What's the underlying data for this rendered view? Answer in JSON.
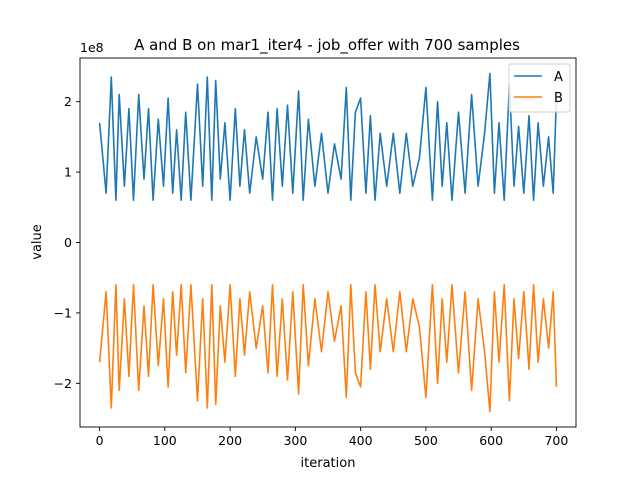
{
  "chart_data": {
    "type": "line",
    "title": "A and B on mar1_iter4 - job_offer with 700 samples",
    "xlabel": "iteration",
    "ylabel": "value",
    "y_offset_label": "1e8",
    "xlim": [
      -30,
      730
    ],
    "ylim": [
      -262000000.0,
      262000000.0
    ],
    "x_ticks": [
      0,
      100,
      200,
      300,
      400,
      500,
      600,
      700
    ],
    "y_ticks": [
      -200000000.0,
      -100000000.0,
      0,
      100000000.0,
      200000000.0
    ],
    "y_tick_labels": [
      "−2",
      "−1",
      "0",
      "1",
      "2"
    ],
    "legend_position": "top-right",
    "grid": false,
    "series": [
      {
        "name": "A",
        "color": "#1f77b4",
        "x": [
          0,
          10,
          18,
          25,
          30,
          38,
          45,
          52,
          60,
          68,
          75,
          82,
          90,
          98,
          105,
          112,
          118,
          125,
          132,
          140,
          150,
          158,
          165,
          172,
          178,
          185,
          192,
          200,
          208,
          215,
          222,
          230,
          240,
          250,
          258,
          265,
          272,
          280,
          288,
          296,
          305,
          312,
          320,
          330,
          340,
          350,
          360,
          370,
          378,
          385,
          392,
          400,
          408,
          415,
          422,
          430,
          440,
          450,
          460,
          470,
          480,
          490,
          500,
          510,
          518,
          525,
          532,
          540,
          550,
          560,
          570,
          580,
          590,
          598,
          605,
          612,
          620,
          628,
          635,
          642,
          650,
          658,
          665,
          672,
          680,
          688,
          695,
          700
        ],
        "y": [
          170000000.0,
          70000000.0,
          235000000.0,
          60000000.0,
          210000000.0,
          80000000.0,
          190000000.0,
          60000000.0,
          210000000.0,
          90000000.0,
          190000000.0,
          60000000.0,
          175000000.0,
          80000000.0,
          205000000.0,
          70000000.0,
          160000000.0,
          60000000.0,
          185000000.0,
          60000000.0,
          225000000.0,
          80000000.0,
          235000000.0,
          60000000.0,
          230000000.0,
          90000000.0,
          170000000.0,
          60000000.0,
          190000000.0,
          80000000.0,
          160000000.0,
          70000000.0,
          150000000.0,
          90000000.0,
          185000000.0,
          60000000.0,
          190000000.0,
          80000000.0,
          195000000.0,
          70000000.0,
          215000000.0,
          60000000.0,
          175000000.0,
          80000000.0,
          155000000.0,
          70000000.0,
          140000000.0,
          90000000.0,
          220000000.0,
          60000000.0,
          185000000.0,
          205000000.0,
          70000000.0,
          180000000.0,
          60000000.0,
          155000000.0,
          80000000.0,
          155000000.0,
          70000000.0,
          155000000.0,
          80000000.0,
          120000000.0,
          220000000.0,
          60000000.0,
          200000000.0,
          80000000.0,
          170000000.0,
          60000000.0,
          185000000.0,
          70000000.0,
          210000000.0,
          80000000.0,
          155000000.0,
          240000000.0,
          70000000.0,
          170000000.0,
          60000000.0,
          225000000.0,
          80000000.0,
          165000000.0,
          70000000.0,
          180000000.0,
          60000000.0,
          170000000.0,
          80000000.0,
          150000000.0,
          70000000.0,
          205000000.0
        ]
      },
      {
        "name": "B",
        "color": "#ff7f0e",
        "x": [
          0,
          10,
          18,
          25,
          30,
          38,
          45,
          52,
          60,
          68,
          75,
          82,
          90,
          98,
          105,
          112,
          118,
          125,
          132,
          140,
          150,
          158,
          165,
          172,
          178,
          185,
          192,
          200,
          208,
          215,
          222,
          230,
          240,
          250,
          258,
          265,
          272,
          280,
          288,
          296,
          305,
          312,
          320,
          330,
          340,
          350,
          360,
          370,
          378,
          385,
          392,
          400,
          408,
          415,
          422,
          430,
          440,
          450,
          460,
          470,
          480,
          490,
          500,
          510,
          518,
          525,
          532,
          540,
          550,
          560,
          570,
          580,
          590,
          598,
          605,
          612,
          620,
          628,
          635,
          642,
          650,
          658,
          665,
          672,
          680,
          688,
          695,
          700
        ],
        "y": [
          -170000000.0,
          -70000000.0,
          -235000000.0,
          -60000000.0,
          -210000000.0,
          -80000000.0,
          -190000000.0,
          -60000000.0,
          -210000000.0,
          -90000000.0,
          -190000000.0,
          -60000000.0,
          -175000000.0,
          -80000000.0,
          -205000000.0,
          -70000000.0,
          -160000000.0,
          -60000000.0,
          -185000000.0,
          -60000000.0,
          -225000000.0,
          -80000000.0,
          -235000000.0,
          -60000000.0,
          -230000000.0,
          -90000000.0,
          -170000000.0,
          -60000000.0,
          -190000000.0,
          -80000000.0,
          -160000000.0,
          -70000000.0,
          -150000000.0,
          -90000000.0,
          -185000000.0,
          -60000000.0,
          -190000000.0,
          -80000000.0,
          -195000000.0,
          -70000000.0,
          -215000000.0,
          -60000000.0,
          -175000000.0,
          -80000000.0,
          -155000000.0,
          -70000000.0,
          -140000000.0,
          -90000000.0,
          -220000000.0,
          -60000000.0,
          -185000000.0,
          -205000000.0,
          -70000000.0,
          -180000000.0,
          -60000000.0,
          -155000000.0,
          -80000000.0,
          -155000000.0,
          -70000000.0,
          -155000000.0,
          -80000000.0,
          -120000000.0,
          -220000000.0,
          -60000000.0,
          -200000000.0,
          -80000000.0,
          -170000000.0,
          -60000000.0,
          -185000000.0,
          -70000000.0,
          -210000000.0,
          -80000000.0,
          -155000000.0,
          -240000000.0,
          -70000000.0,
          -170000000.0,
          -60000000.0,
          -225000000.0,
          -80000000.0,
          -165000000.0,
          -70000000.0,
          -180000000.0,
          -60000000.0,
          -170000000.0,
          -80000000.0,
          -150000000.0,
          -70000000.0,
          -205000000.0
        ]
      }
    ]
  }
}
